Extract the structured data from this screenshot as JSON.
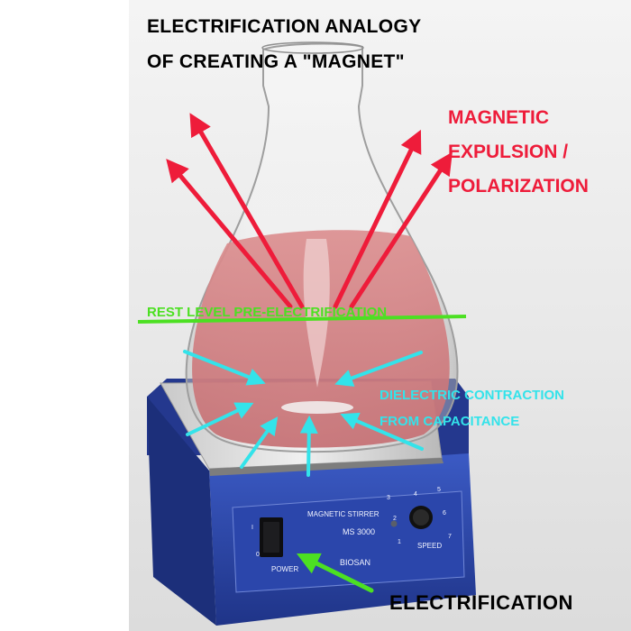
{
  "title_lines": [
    "ELECTRIFICATION ANALOGY",
    "OF CREATING A \"MAGNET\""
  ],
  "labels": {
    "magnetic_lines": [
      "MAGNETIC",
      "EXPULSION /",
      "POLARIZATION"
    ],
    "rest_level": "REST LEVEL PRE-ELECTRIFICATION",
    "dielectric_lines": [
      "DIELECTRIC CONTRACTION",
      "FROM CAPACITANCE"
    ],
    "electrification": "ELECTRIFICATION"
  },
  "device_panel": {
    "name": "MAGNETIC STIRRER",
    "model": "MS 3000",
    "brand": "BIOSAN",
    "power_label": "POWER",
    "speed_label": "SPEED",
    "switch_marks": [
      "I",
      "0"
    ],
    "dial_numbers": [
      "1",
      "2",
      "3",
      "4",
      "5",
      "6",
      "7"
    ]
  },
  "colors": {
    "red_arrows": "#ee1c3a",
    "cyan_arrows": "#33e3ea",
    "green_line": "#4ce022",
    "stirrer_blue": "#2a45a8",
    "liquid": "#d9898a"
  }
}
